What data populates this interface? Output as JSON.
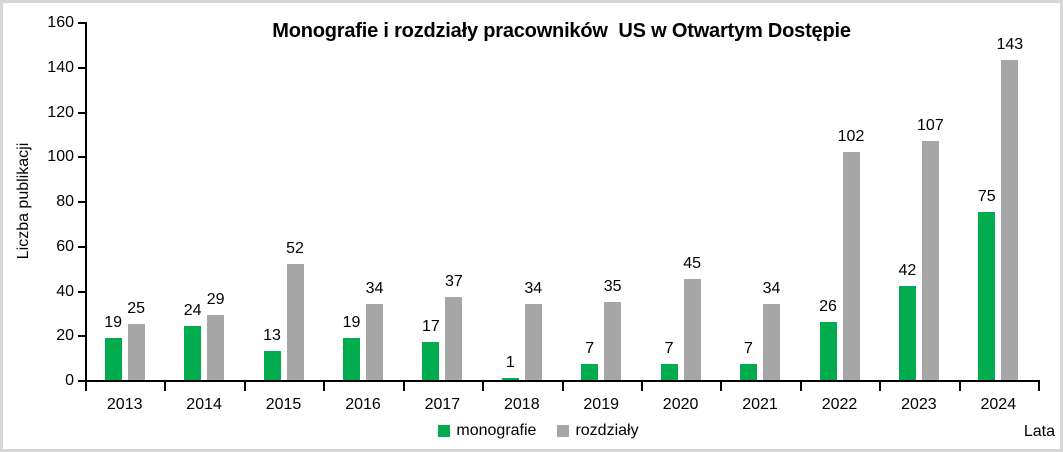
{
  "chart_data": {
    "type": "bar",
    "title": "Monografie i rozdziały pracowników  US w Otwartym Dostępie",
    "xlabel": "Lata",
    "ylabel": "Liczba publikacji",
    "categories": [
      "2013",
      "2014",
      "2015",
      "2016",
      "2017",
      "2018",
      "2019",
      "2020",
      "2021",
      "2022",
      "2023",
      "2024"
    ],
    "series": [
      {
        "name": "monografie",
        "color": "#00AC4E",
        "values": [
          19,
          24,
          13,
          19,
          17,
          1,
          7,
          7,
          7,
          26,
          42,
          75
        ]
      },
      {
        "name": "rozdziały",
        "color": "#A6A6A6",
        "values": [
          25,
          29,
          52,
          34,
          37,
          34,
          35,
          45,
          34,
          102,
          107,
          143
        ]
      }
    ],
    "ylim": [
      0,
      160
    ],
    "yticks": [
      0,
      20,
      40,
      60,
      80,
      100,
      120,
      140,
      160
    ],
    "grid": false,
    "legend_position": "bottom",
    "data_labels": true
  },
  "colors": {
    "axis": "#000000",
    "background": "#FFFFFF",
    "frame_border": "#D6D6D6",
    "text": "#000000"
  }
}
